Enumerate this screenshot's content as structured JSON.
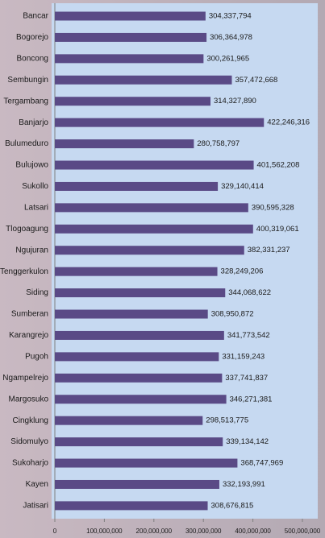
{
  "chart_data": {
    "type": "bar",
    "orientation": "horizontal",
    "categories": [
      "Bancar",
      "Bogorejo",
      "Boncong",
      "Sembungin",
      "Tergambang",
      "Banjarjo",
      "Bulumeduro",
      "Bulujowo",
      "Sukollo",
      "Latsari",
      "Tlogoagung",
      "Ngujuran",
      "Tenggerkulon",
      "Siding",
      "Sumberan",
      "Karangrejo",
      "Pugoh",
      "Ngampelrejo",
      "Margosuko",
      "Cingklung",
      "Sidomulyo",
      "Sukoharjo",
      "Kayen",
      "Jatisari"
    ],
    "values": [
      304337794,
      306364978,
      300261965,
      357472668,
      314327890,
      422246316,
      280758797,
      401562208,
      329140414,
      390595328,
      400319061,
      382331237,
      328249206,
      344068622,
      308950872,
      341773542,
      331159243,
      337741837,
      346271381,
      298513775,
      339134142,
      368747969,
      332193991,
      308676815
    ],
    "value_labels": [
      "304,337,794",
      "306,364,978",
      "300,261,965",
      "357,472,668",
      "314,327,890",
      "422,246,316",
      "280,758,797",
      "401,562,208",
      "329,140,414",
      "390,595,328",
      "400,319,061",
      "382,331,237",
      "328,249,206",
      "344,068,622",
      "308,950,872",
      "341,773,542",
      "331,159,243",
      "337,741,837",
      "346,271,381",
      "298,513,775",
      "339,134,142",
      "368,747,969",
      "332,193,991",
      "308,676,815"
    ],
    "color": "#5a4a86",
    "xlim": [
      0,
      500000000
    ],
    "xticks": [
      0,
      {
        "value": 100000000,
        "label": "100,000,000"
      },
      {
        "value": 200000000,
        "label": "200,000,000"
      },
      {
        "value": 300000000,
        "label": "300,000,000"
      },
      {
        "value": 400000000,
        "label": "400,000,000"
      },
      {
        "value": 500000000,
        "label": "500,000,000"
      }
    ]
  }
}
